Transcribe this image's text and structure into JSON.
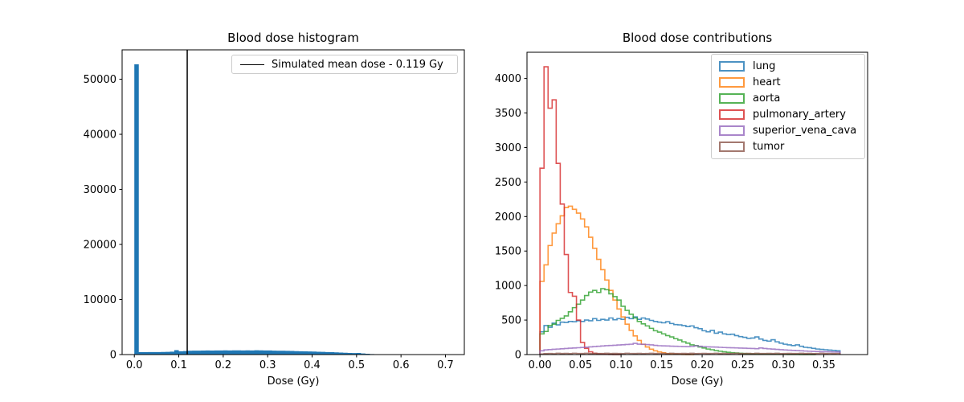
{
  "chart_data": [
    {
      "type": "bar",
      "title": "Blood dose histogram",
      "xlabel": "Dose (Gy)",
      "ylabel": "",
      "bar_color": "#1f77b4",
      "grid": false,
      "bins": {
        "start": 0.0,
        "width": 0.01
      },
      "values": [
        52700,
        430,
        440,
        450,
        455,
        465,
        475,
        490,
        530,
        800,
        600,
        640,
        700,
        720,
        710,
        730,
        740,
        730,
        750,
        740,
        760,
        750,
        770,
        760,
        750,
        765,
        755,
        790,
        770,
        745,
        740,
        720,
        700,
        690,
        670,
        650,
        630,
        610,
        590,
        565,
        540,
        515,
        490,
        460,
        430,
        400,
        370,
        335,
        300,
        270,
        300,
        200,
        150,
        100,
        60,
        30
      ],
      "vline": {
        "x": 0.119,
        "color": "#000000",
        "linewidth": 1.5
      },
      "legend": {
        "label": "Simulated mean dose - 0.119 Gy",
        "line_color": "#000000",
        "position": "upper right"
      },
      "xlim": [
        -0.0275,
        0.7425
      ],
      "ylim": [
        0,
        55335
      ],
      "x_ticks": {
        "values": [
          0.0,
          0.1,
          0.2,
          0.3,
          0.4,
          0.5,
          0.6,
          0.7
        ],
        "labels": [
          "0.0",
          "0.1",
          "0.2",
          "0.3",
          "0.4",
          "0.5",
          "0.6",
          "0.7"
        ]
      },
      "y_ticks": {
        "values": [
          0,
          10000,
          20000,
          30000,
          40000,
          50000
        ],
        "labels": [
          "0",
          "10000",
          "20000",
          "30000",
          "40000",
          "50000"
        ]
      }
    },
    {
      "type": "step",
      "title": "Blood dose contributions",
      "xlabel": "Dose (Gy)",
      "ylabel": "",
      "grid": false,
      "line_alpha": 0.8,
      "line_width": 1.6,
      "bins": {
        "start": 0.0,
        "width": 0.005
      },
      "series": [
        {
          "name": "lung",
          "color": "#1f77b4",
          "values": [
            330,
            420,
            395,
            455,
            430,
            470,
            465,
            480,
            475,
            490,
            480,
            500,
            490,
            520,
            495,
            510,
            500,
            530,
            505,
            520,
            510,
            540,
            520,
            545,
            510,
            530,
            515,
            495,
            480,
            470,
            460,
            475,
            450,
            435,
            430,
            420,
            405,
            415,
            390,
            375,
            345,
            330,
            350,
            310,
            325,
            300,
            290,
            295,
            275,
            260,
            250,
            235,
            240,
            255,
            225,
            205,
            195,
            215,
            185,
            165,
            150,
            140,
            130,
            140,
            120,
            105,
            100,
            90,
            80,
            75,
            70,
            65,
            60,
            55
          ]
        },
        {
          "name": "heart",
          "color": "#ff7f0e",
          "values": [
            1060,
            1300,
            1580,
            1760,
            1895,
            2010,
            2130,
            2150,
            2105,
            2050,
            1965,
            1850,
            1700,
            1540,
            1380,
            1230,
            1080,
            930,
            790,
            660,
            545,
            440,
            350,
            270,
            205,
            150,
            110,
            78,
            55,
            38,
            25,
            16,
            10,
            6,
            4,
            2,
            1,
            1,
            0,
            0,
            0,
            0,
            0,
            0,
            0,
            0,
            0,
            0,
            0,
            0,
            0,
            0,
            0,
            0,
            0,
            0,
            0,
            0,
            0,
            0,
            0,
            0,
            0,
            0,
            0,
            0,
            0,
            0,
            0,
            0,
            0,
            0,
            0,
            0
          ]
        },
        {
          "name": "aorta",
          "color": "#2ca02c",
          "values": [
            300,
            335,
            420,
            440,
            495,
            525,
            560,
            620,
            680,
            730,
            790,
            855,
            905,
            930,
            900,
            955,
            940,
            880,
            840,
            790,
            700,
            640,
            585,
            530,
            480,
            445,
            415,
            380,
            345,
            325,
            300,
            275,
            255,
            230,
            210,
            185,
            165,
            140,
            130,
            110,
            95,
            80,
            70,
            58,
            48,
            40,
            33,
            27,
            22,
            18,
            15,
            12,
            10,
            8,
            7,
            6,
            5,
            4,
            4,
            3,
            3,
            2,
            2,
            2,
            1,
            1,
            1,
            1,
            0,
            0,
            0,
            0,
            0,
            0
          ]
        },
        {
          "name": "pulmonary_artery",
          "color": "#d62728",
          "values": [
            2700,
            4170,
            3570,
            3690,
            2770,
            2180,
            1450,
            900,
            845,
            500,
            175,
            90,
            40,
            18,
            10,
            6,
            3,
            2,
            1,
            1,
            0,
            0,
            0,
            0,
            0,
            0,
            0,
            0,
            0,
            0,
            0,
            0,
            0,
            0,
            0,
            0,
            0,
            0,
            0,
            0,
            0,
            0,
            0,
            0,
            0,
            0,
            0,
            0,
            0,
            0,
            0,
            0,
            0,
            0,
            0,
            0,
            0,
            0,
            0,
            0,
            0,
            0,
            0,
            0,
            0,
            0,
            0,
            0,
            0,
            0,
            0,
            0,
            0,
            0
          ]
        },
        {
          "name": "superior_vena_cava",
          "color": "#9467bd",
          "values": [
            55,
            68,
            72,
            76,
            80,
            84,
            88,
            92,
            95,
            99,
            103,
            107,
            111,
            116,
            120,
            125,
            129,
            132,
            135,
            139,
            142,
            146,
            150,
            162,
            151,
            148,
            145,
            140,
            133,
            128,
            126,
            124,
            122,
            120,
            118,
            116,
            114,
            118,
            126,
            120,
            115,
            112,
            110,
            108,
            105,
            102,
            100,
            98,
            96,
            94,
            92,
            90,
            88,
            85,
            95,
            88,
            83,
            79,
            75,
            71,
            67,
            63,
            60,
            57,
            54,
            51,
            48,
            46,
            44,
            42,
            41,
            40,
            38,
            37
          ]
        },
        {
          "name": "tumor",
          "color": "#8c564b",
          "values": [
            8,
            14,
            16,
            13,
            18,
            15,
            17,
            14,
            19,
            16,
            15,
            18,
            14,
            17,
            15,
            16,
            18,
            15,
            17,
            16,
            14,
            18,
            16,
            15,
            17,
            14,
            16,
            18,
            15,
            16,
            17,
            14,
            18,
            15,
            16,
            17,
            15,
            18,
            14,
            16,
            17,
            15,
            16,
            18,
            15,
            17,
            14,
            16,
            18,
            15,
            16,
            17,
            14,
            18,
            15,
            16,
            17,
            15,
            18,
            14,
            16,
            17,
            15,
            16,
            18,
            15,
            17,
            14,
            16,
            18,
            15,
            16,
            15,
            16
          ]
        }
      ],
      "legend_position": "upper right",
      "xlim": [
        -0.016,
        0.404
      ],
      "ylim": [
        0,
        4380
      ],
      "x_ticks": {
        "values": [
          0.0,
          0.05,
          0.1,
          0.15,
          0.2,
          0.25,
          0.3,
          0.35
        ],
        "labels": [
          "0.00",
          "0.05",
          "0.10",
          "0.15",
          "0.20",
          "0.25",
          "0.30",
          "0.35"
        ]
      },
      "y_ticks": {
        "values": [
          0,
          500,
          1000,
          1500,
          2000,
          2500,
          3000,
          3500,
          4000
        ],
        "labels": [
          "0",
          "500",
          "1000",
          "1500",
          "2000",
          "2500",
          "3000",
          "3500",
          "4000"
        ]
      }
    }
  ]
}
